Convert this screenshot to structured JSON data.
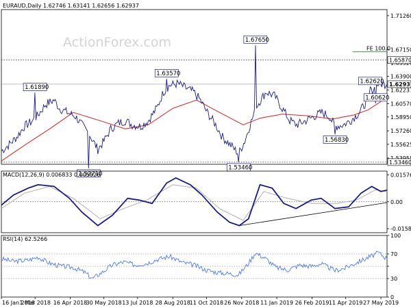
{
  "chart_data": {
    "type": "line",
    "title": "EURAUD,Daily  1.62746 1.63141 1.62656 1.62937",
    "watermark": "ActionForex.com",
    "x_ticks": [
      "16 Jan 2018",
      "1 Mar 2018",
      "16 Apr 2018",
      "30 May 2018",
      "13 Jul 2018",
      "28 Aug 2018",
      "11 Oct 2018",
      "26 Nov 2018",
      "11 Jan 2019",
      "26 Feb 2019",
      "11 Apr 2019",
      "27 May 2019"
    ],
    "x_range": [
      "2018-01-16",
      "2019-06-04"
    ],
    "price_panel": {
      "series": [
        {
          "name": "EURAUD",
          "color": "#1a1a8c"
        },
        {
          "name": "",
          "color": "#e02020"
        }
      ],
      "ylim": [
        1.532,
        1.72
      ],
      "y_ticks": [
        1.7126,
        1.6715,
        1.6552,
        1.639,
        1.62237,
        1.6057,
        1.5895,
        1.5726,
        1.55625,
        1.53955,
        1.5346
      ],
      "current_value": 1.62937,
      "levels": [
        {
          "label": "1.65870",
          "value": 1.6587,
          "style": "dotted"
        },
        {
          "label": "1.53460",
          "value": 1.5346,
          "style": "dotted"
        }
      ],
      "fe_label": "FE 100.0",
      "fe_value": 1.6587,
      "price_labels": [
        {
          "text": "1.61890",
          "date": "2018-03-01",
          "value": 1.6189
        },
        {
          "text": "1.52710",
          "date": "2018-05-10",
          "value": 1.5271
        },
        {
          "text": "1.63570",
          "date": "2018-08-20",
          "value": 1.6357
        },
        {
          "text": "1.53460",
          "date": "2018-11-22",
          "value": 1.5346
        },
        {
          "text": "1.67650",
          "date": "2018-12-14",
          "value": 1.6765
        },
        {
          "text": "1.56830",
          "date": "2019-03-28",
          "value": 1.5683
        },
        {
          "text": "1.62620",
          "date": "2019-05-13",
          "value": 1.6262
        },
        {
          "text": "1.60620",
          "date": "2019-05-20",
          "value": 1.6062
        }
      ],
      "price_points": [
        [
          "2018-01-16",
          1.548
        ],
        [
          "2018-01-25",
          1.555
        ],
        [
          "2018-02-05",
          1.565
        ],
        [
          "2018-02-15",
          1.578
        ],
        [
          "2018-02-26",
          1.585
        ],
        [
          "2018-03-05",
          1.592
        ],
        [
          "2018-03-15",
          1.605
        ],
        [
          "2018-03-26",
          1.61
        ],
        [
          "2018-04-02",
          1.6
        ],
        [
          "2018-04-12",
          1.595
        ],
        [
          "2018-04-23",
          1.59
        ],
        [
          "2018-05-01",
          1.58
        ],
        [
          "2018-05-10",
          1.57
        ],
        [
          "2018-05-22",
          1.55
        ],
        [
          "2018-05-30",
          1.56
        ],
        [
          "2018-06-08",
          1.575
        ],
        [
          "2018-06-18",
          1.582
        ],
        [
          "2018-06-27",
          1.585
        ],
        [
          "2018-07-06",
          1.58
        ],
        [
          "2018-07-17",
          1.578
        ],
        [
          "2018-07-27",
          1.585
        ],
        [
          "2018-08-07",
          1.6
        ],
        [
          "2018-08-16",
          1.62
        ],
        [
          "2018-08-24",
          1.628
        ],
        [
          "2018-09-04",
          1.63
        ],
        [
          "2018-09-13",
          1.625
        ],
        [
          "2018-09-24",
          1.62
        ],
        [
          "2018-10-03",
          1.61
        ],
        [
          "2018-10-12",
          1.595
        ],
        [
          "2018-10-23",
          1.58
        ],
        [
          "2018-11-01",
          1.565
        ],
        [
          "2018-11-12",
          1.555
        ],
        [
          "2018-11-22",
          1.545
        ],
        [
          "2018-11-30",
          1.56
        ],
        [
          "2018-12-07",
          1.58
        ],
        [
          "2018-12-17",
          1.605
        ],
        [
          "2018-12-28",
          1.62
        ],
        [
          "2019-01-08",
          1.615
        ],
        [
          "2019-01-18",
          1.6
        ],
        [
          "2019-01-28",
          1.585
        ],
        [
          "2019-02-06",
          1.58
        ],
        [
          "2019-02-18",
          1.585
        ],
        [
          "2019-02-28",
          1.59
        ],
        [
          "2019-03-11",
          1.595
        ],
        [
          "2019-03-21",
          1.59
        ],
        [
          "2019-03-28",
          1.578
        ],
        [
          "2019-04-08",
          1.58
        ],
        [
          "2019-04-17",
          1.585
        ],
        [
          "2019-04-29",
          1.595
        ],
        [
          "2019-05-09",
          1.61
        ],
        [
          "2019-05-16",
          1.622
        ],
        [
          "2019-05-24",
          1.63
        ],
        [
          "2019-06-04",
          1.6294
        ]
      ],
      "ma_points": [
        [
          "2018-01-16",
          1.536
        ],
        [
          "2018-02-15",
          1.555
        ],
        [
          "2018-03-20",
          1.575
        ],
        [
          "2018-04-20",
          1.595
        ],
        [
          "2018-05-25",
          1.585
        ],
        [
          "2018-06-27",
          1.575
        ],
        [
          "2018-07-27",
          1.58
        ],
        [
          "2018-08-28",
          1.6
        ],
        [
          "2018-09-28",
          1.61
        ],
        [
          "2018-10-26",
          1.596
        ],
        [
          "2018-11-28",
          1.58
        ],
        [
          "2018-12-20",
          1.588
        ],
        [
          "2019-01-18",
          1.593
        ],
        [
          "2019-02-20",
          1.591
        ],
        [
          "2019-03-25",
          1.587
        ],
        [
          "2019-04-22",
          1.592
        ],
        [
          "2019-05-10",
          1.598
        ],
        [
          "2019-06-04",
          1.613
        ]
      ]
    },
    "macd_panel": {
      "title": "MACD(12,26,9) 0.006833 0.005926",
      "ylim": [
        -0.0182,
        0.018
      ],
      "y_ticks": [
        0.015762,
        0.0,
        -0.015834
      ],
      "y_tick_labels": [
        "0.015762",
        "0.00",
        "-0.015834"
      ],
      "series": [
        {
          "name": "MACD",
          "color": "#1a1a8c"
        },
        {
          "name": "Signal",
          "color": "#b0b0b0"
        }
      ],
      "macd_points": [
        [
          "2018-01-16",
          -0.002
        ],
        [
          "2018-02-01",
          0.004
        ],
        [
          "2018-02-20",
          0.008
        ],
        [
          "2018-03-05",
          0.01
        ],
        [
          "2018-03-26",
          0.009
        ],
        [
          "2018-04-15",
          0.002
        ],
        [
          "2018-05-01",
          -0.006
        ],
        [
          "2018-05-22",
          -0.014
        ],
        [
          "2018-06-10",
          -0.008
        ],
        [
          "2018-06-30",
          0.002
        ],
        [
          "2018-07-15",
          0.001
        ],
        [
          "2018-08-01",
          -0.001
        ],
        [
          "2018-08-20",
          0.011
        ],
        [
          "2018-09-01",
          0.014
        ],
        [
          "2018-09-20",
          0.01
        ],
        [
          "2018-10-05",
          0.004
        ],
        [
          "2018-10-25",
          -0.006
        ],
        [
          "2018-11-10",
          -0.012
        ],
        [
          "2018-11-23",
          -0.014
        ],
        [
          "2018-12-05",
          -0.01
        ],
        [
          "2018-12-20",
          0.01
        ],
        [
          "2019-01-05",
          0.008
        ],
        [
          "2019-01-20",
          -0.001
        ],
        [
          "2019-02-05",
          -0.004
        ],
        [
          "2019-02-25",
          0.001
        ],
        [
          "2019-03-10",
          0.002
        ],
        [
          "2019-03-28",
          -0.004
        ],
        [
          "2019-04-15",
          -0.003
        ],
        [
          "2019-05-01",
          0.005
        ],
        [
          "2019-05-15",
          0.009
        ],
        [
          "2019-05-27",
          0.006
        ],
        [
          "2019-06-04",
          0.0068
        ]
      ],
      "signal_points": [
        [
          "2018-01-16",
          -0.004
        ],
        [
          "2018-02-15",
          0.005
        ],
        [
          "2018-03-20",
          0.009
        ],
        [
          "2018-04-20",
          0.002
        ],
        [
          "2018-05-25",
          -0.01
        ],
        [
          "2018-06-25",
          -0.004
        ],
        [
          "2018-07-25",
          0.001
        ],
        [
          "2018-08-28",
          0.01
        ],
        [
          "2018-09-28",
          0.008
        ],
        [
          "2018-10-28",
          -0.004
        ],
        [
          "2018-11-28",
          -0.011
        ],
        [
          "2018-12-25",
          0.006
        ],
        [
          "2019-01-25",
          0.002
        ],
        [
          "2019-02-25",
          -0.001
        ],
        [
          "2019-03-30",
          -0.001
        ],
        [
          "2019-04-25",
          0.001
        ],
        [
          "2019-05-20",
          0.007
        ],
        [
          "2019-06-04",
          0.0059
        ]
      ],
      "trendline": [
        [
          "2018-11-23",
          -0.014
        ],
        [
          "2019-06-04",
          -0.0005
        ]
      ]
    },
    "rsi_panel": {
      "title": "RSI(14) 62.5266",
      "ylim": [
        0,
        100
      ],
      "y_ticks": [
        100,
        70,
        50,
        30,
        0
      ],
      "y_tick_labels": [
        "100",
        "70",
        "",
        "30",
        "0"
      ],
      "series": [
        {
          "name": "RSI",
          "color": "#4a78ff"
        }
      ],
      "rsi_points": [
        [
          "2018-01-16",
          62
        ],
        [
          "2018-02-01",
          58
        ],
        [
          "2018-02-20",
          60
        ],
        [
          "2018-03-05",
          65
        ],
        [
          "2018-03-20",
          55
        ],
        [
          "2018-04-05",
          50
        ],
        [
          "2018-04-20",
          48
        ],
        [
          "2018-05-05",
          40
        ],
        [
          "2018-05-15",
          30
        ],
        [
          "2018-05-25",
          38
        ],
        [
          "2018-06-10",
          52
        ],
        [
          "2018-06-25",
          57
        ],
        [
          "2018-07-10",
          52
        ],
        [
          "2018-07-25",
          55
        ],
        [
          "2018-08-10",
          62
        ],
        [
          "2018-08-24",
          66
        ],
        [
          "2018-09-10",
          56
        ],
        [
          "2018-09-25",
          52
        ],
        [
          "2018-10-10",
          44
        ],
        [
          "2018-10-25",
          40
        ],
        [
          "2018-11-10",
          38
        ],
        [
          "2018-11-22",
          36
        ],
        [
          "2018-12-05",
          55
        ],
        [
          "2018-12-14",
          72
        ],
        [
          "2018-12-28",
          62
        ],
        [
          "2019-01-10",
          48
        ],
        [
          "2019-01-25",
          44
        ],
        [
          "2019-02-10",
          52
        ],
        [
          "2019-02-25",
          50
        ],
        [
          "2019-03-10",
          54
        ],
        [
          "2019-03-28",
          43
        ],
        [
          "2019-04-10",
          47
        ],
        [
          "2019-04-25",
          56
        ],
        [
          "2019-05-10",
          64
        ],
        [
          "2019-05-24",
          72
        ],
        [
          "2019-06-04",
          62.5
        ]
      ]
    }
  }
}
